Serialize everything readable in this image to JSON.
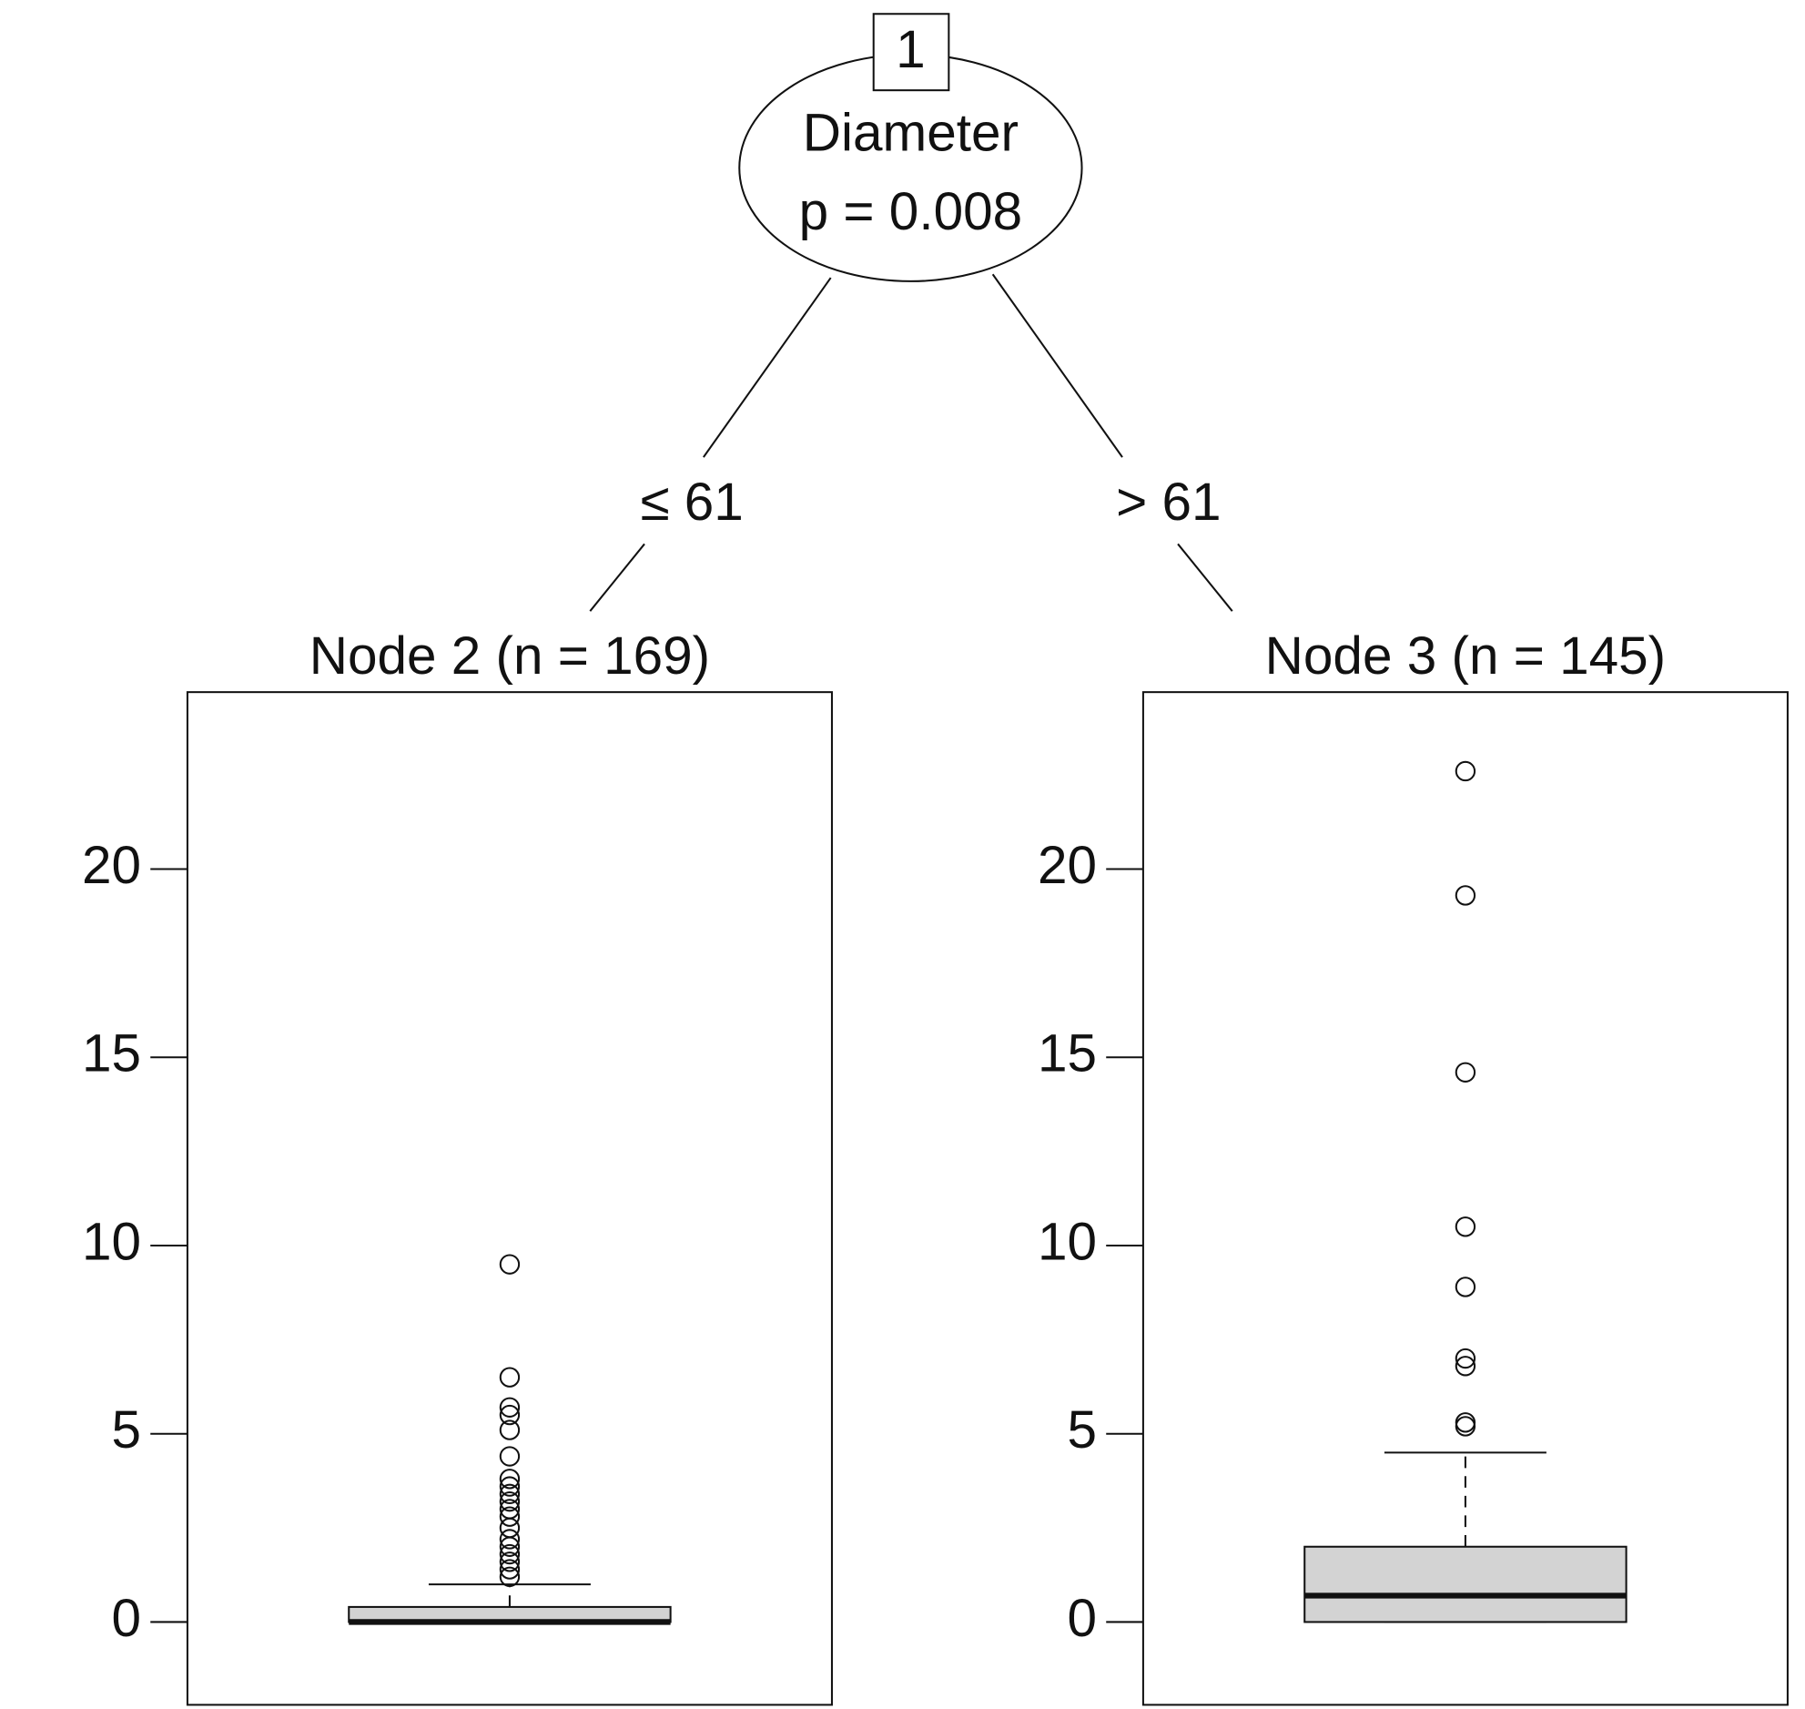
{
  "tree": {
    "root": {
      "id": "1",
      "variable": "Diameter",
      "p_value": "p = 0.008"
    },
    "edges": [
      "≤ 61",
      "> 61"
    ]
  },
  "chart_data": [
    {
      "type": "boxplot",
      "title": "Node 2 (n = 169)",
      "color": "#d3d3d3",
      "ylim": [
        -2.2,
        24.7
      ],
      "yticks": [
        0,
        5,
        10,
        15,
        20
      ],
      "box": {
        "whisker_low": 0,
        "q1": 0,
        "median": 0,
        "q3": 0.4,
        "whisker_high": 1.0
      },
      "outliers": [
        9.5,
        6.5,
        5.7,
        5.5,
        5.1,
        4.4,
        3.8,
        3.6,
        3.4,
        3.2,
        3.0,
        2.8,
        2.5,
        2.2,
        2.0,
        1.8,
        1.6,
        1.4,
        1.2
      ]
    },
    {
      "type": "boxplot",
      "title": "Node 3 (n = 145)",
      "color": "#d3d3d3",
      "ylim": [
        -2.2,
        24.7
      ],
      "yticks": [
        0,
        5,
        10,
        15,
        20
      ],
      "box": {
        "whisker_low": 0,
        "q1": 0,
        "median": 0.7,
        "q3": 2.0,
        "whisker_high": 4.5
      },
      "outliers": [
        22.6,
        19.3,
        14.6,
        10.5,
        8.9,
        7.0,
        6.8,
        5.3,
        5.2
      ]
    }
  ]
}
